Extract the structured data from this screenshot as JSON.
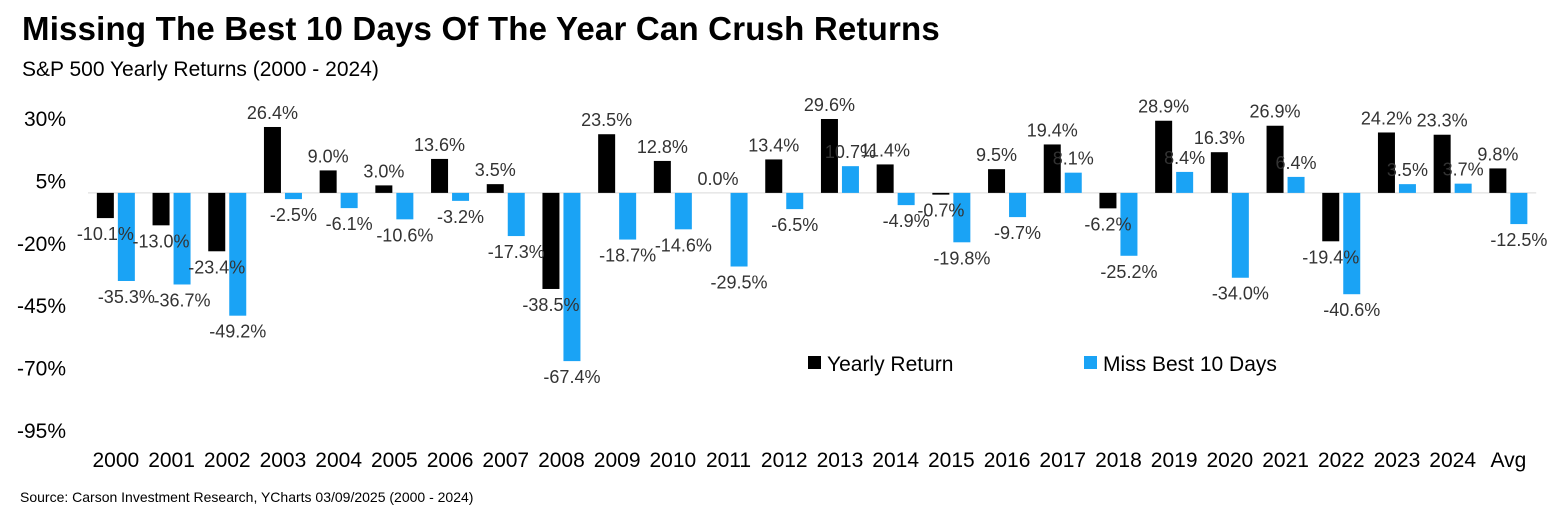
{
  "header": {
    "title": "Missing The Best 10 Days Of The Year Can Crush Returns",
    "subtitle": "S&P 500 Yearly Returns (2000 - 2024)"
  },
  "footer": {
    "source": "Source: Carson Investment Research, YCharts 03/09/2025 (2000 - 2024)"
  },
  "chart_data": {
    "type": "bar",
    "title": "Missing The Best 10 Days Of The Year Can Crush Returns",
    "subtitle": "S&P 500 Yearly Returns (2000 - 2024)",
    "categories": [
      "2000",
      "2001",
      "2002",
      "2003",
      "2004",
      "2005",
      "2006",
      "2007",
      "2008",
      "2009",
      "2010",
      "2011",
      "2012",
      "2013",
      "2014",
      "2015",
      "2016",
      "2017",
      "2018",
      "2019",
      "2020",
      "2021",
      "2022",
      "2023",
      "2024",
      "Avg"
    ],
    "series": [
      {
        "name": "Yearly Return",
        "color": "#000000",
        "values": [
          -10.1,
          -13.0,
          -23.4,
          26.4,
          9.0,
          3.0,
          13.6,
          3.5,
          -38.5,
          23.5,
          12.8,
          0.0,
          13.4,
          29.6,
          11.4,
          -0.7,
          9.5,
          19.4,
          -6.2,
          28.9,
          16.3,
          26.9,
          -19.4,
          24.2,
          23.3,
          9.8
        ],
        "labels": [
          "-10.1%",
          "-13.0%",
          "-23.4%",
          "26.4%",
          "9.0%",
          "3.0%",
          "13.6%",
          "3.5%",
          "-38.5%",
          "23.5%",
          "12.8%",
          "0.0%",
          "13.4%",
          "29.6%",
          "11.4%",
          "-0.7%",
          "9.5%",
          "19.4%",
          "-6.2%",
          "28.9%",
          "16.3%",
          "26.9%",
          "-19.4%",
          "24.2%",
          "23.3%",
          "9.8%"
        ]
      },
      {
        "name": "Miss Best 10 Days",
        "color": "#1aa3f5",
        "values": [
          -35.3,
          -36.7,
          -49.2,
          -2.5,
          -6.1,
          -10.6,
          -3.2,
          -17.3,
          -67.4,
          -18.7,
          -14.6,
          -29.5,
          -6.5,
          10.7,
          -4.9,
          -19.8,
          -9.7,
          8.1,
          -25.2,
          8.4,
          -34.0,
          6.4,
          -40.6,
          3.5,
          3.7,
          -12.5
        ],
        "labels": [
          "-35.3%",
          "-36.7%",
          "-49.2%",
          "-2.5%",
          "-6.1%",
          "-10.6%",
          "-3.2%",
          "-17.3%",
          "-67.4%",
          "-18.7%",
          "-14.6%",
          "-29.5%",
          "-6.5%",
          "10.7%",
          "-4.9%",
          "-19.8%",
          "-9.7%",
          "8.1%",
          "-25.2%",
          "8.4%",
          "-34.0%",
          "6.4%",
          "-40.6%",
          "3.5%",
          "3.7%",
          "-12.5%"
        ]
      }
    ],
    "yticks": [
      "30%",
      "5%",
      "-20%",
      "-45%",
      "-70%",
      "-95%"
    ],
    "ytick_values": [
      30,
      5,
      -20,
      -45,
      -70,
      -95
    ],
    "ylim": [
      -95,
      30
    ],
    "grid": false,
    "legend": "center-right"
  }
}
